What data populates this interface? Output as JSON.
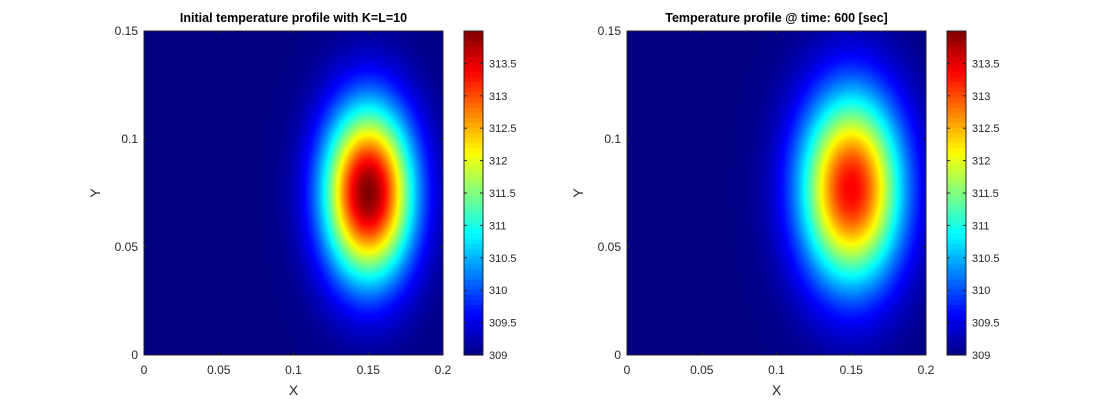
{
  "figure": {
    "background": "#ffffff",
    "axes_color": "#262626"
  },
  "chart_data": [
    {
      "type": "heatmap",
      "title": "Initial temperature profile with K=L=10",
      "xlabel": "X",
      "ylabel": "Y",
      "xlim": [
        0,
        0.2
      ],
      "ylim": [
        0,
        0.15
      ],
      "xticks": [
        0,
        0.05,
        0.1,
        0.15,
        0.2
      ],
      "xtick_labels": [
        "0",
        "0.05",
        "0.1",
        "0.15",
        "0.2"
      ],
      "yticks": [
        0,
        0.05,
        0.1,
        0.15
      ],
      "ytick_labels": [
        "0",
        "0.05",
        "0.1",
        "0.15"
      ],
      "colormap": "jet",
      "clim": [
        309,
        314
      ],
      "colorbar_ticks": [
        309,
        309.5,
        310,
        310.5,
        311,
        311.5,
        312,
        312.5,
        313,
        313.5
      ],
      "colorbar_tick_labels": [
        "309",
        "309.5",
        "310",
        "310.5",
        "311",
        "311.5",
        "312",
        "312.5",
        "313",
        "313.5"
      ],
      "field": {
        "description_of_values": "Gaussian-like hot spot on 309 background",
        "base": 309,
        "peak": 314,
        "center_x": 0.15,
        "center_y": 0.075,
        "sigma_x": 0.021,
        "sigma_y": 0.028
      }
    },
    {
      "type": "heatmap",
      "title": "Temperature profile @ time: 600 [sec]",
      "xlabel": "X",
      "ylabel": "Y",
      "xlim": [
        0,
        0.2
      ],
      "ylim": [
        0,
        0.15
      ],
      "xticks": [
        0,
        0.05,
        0.1,
        0.15,
        0.2
      ],
      "xtick_labels": [
        "0",
        "0.05",
        "0.1",
        "0.15",
        "0.2"
      ],
      "yticks": [
        0,
        0.05,
        0.1,
        0.15
      ],
      "ytick_labels": [
        "0",
        "0.05",
        "0.1",
        "0.15"
      ],
      "colormap": "jet",
      "clim": [
        309,
        314
      ],
      "colorbar_ticks": [
        309,
        309.5,
        310,
        310.5,
        311,
        311.5,
        312,
        312.5,
        313,
        313.5
      ],
      "colorbar_tick_labels": [
        "309",
        "309.5",
        "310",
        "310.5",
        "311",
        "311.5",
        "312",
        "312.5",
        "313",
        "313.5"
      ],
      "field": {
        "base": 309,
        "peak": 313.4,
        "center_x": 0.15,
        "center_y": 0.077,
        "sigma_x": 0.024,
        "sigma_y": 0.031
      }
    }
  ]
}
